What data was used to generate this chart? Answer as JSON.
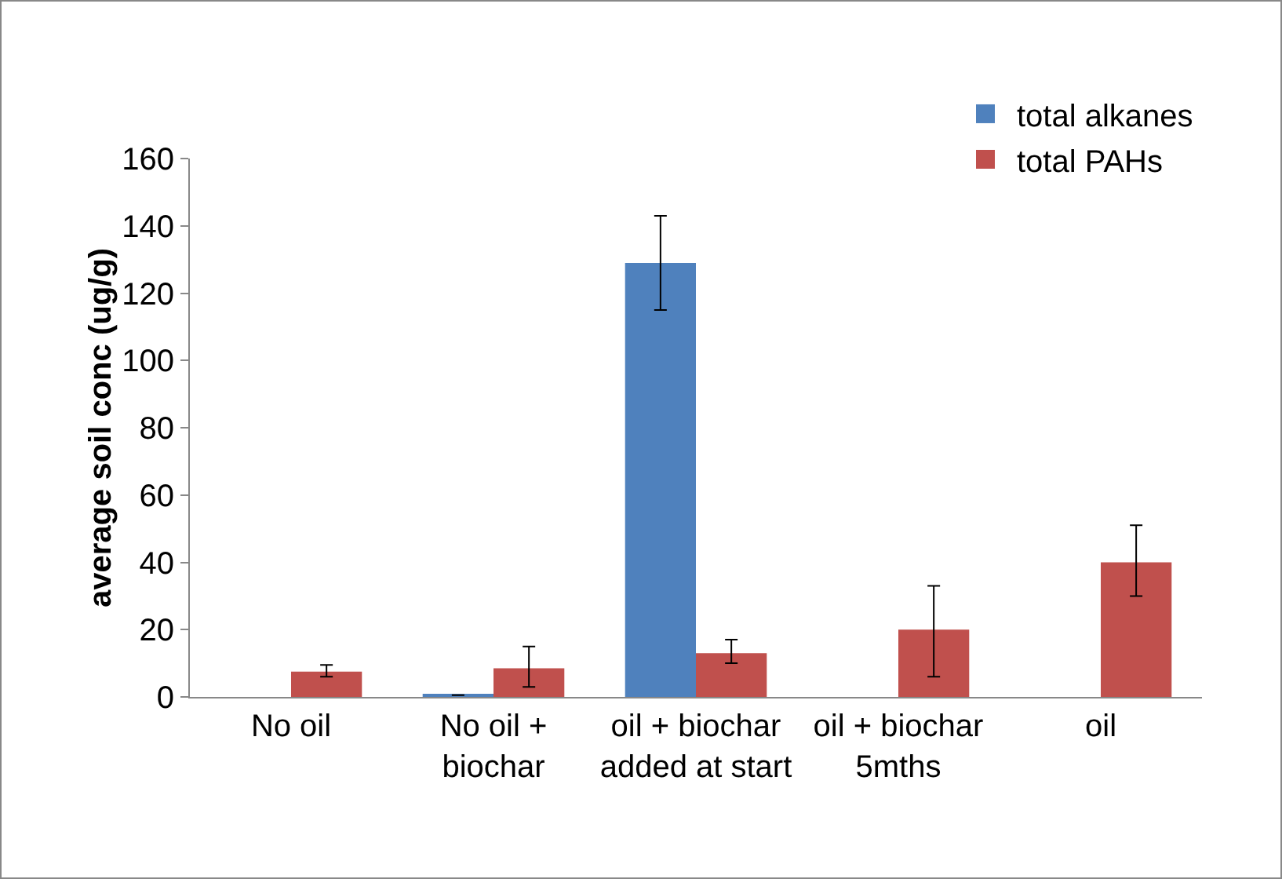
{
  "chart_data": {
    "type": "bar",
    "ylabel": "average soil conc (ug/g)",
    "categories": [
      "No oil",
      "No oil + biochar",
      "oil + biochar added at start",
      "oil + biochar 5mths",
      "oil"
    ],
    "series": [
      {
        "name": "total alkanes",
        "color": "#4f81bd",
        "values": [
          null,
          0.5,
          129,
          null,
          null
        ],
        "errors": [
          null,
          null,
          [
            115,
            143
          ],
          null,
          null
        ]
      },
      {
        "name": "total PAHs",
        "color": "#c0504d",
        "values": [
          7.5,
          8.5,
          13,
          20,
          40
        ],
        "errors": [
          [
            6,
            9.5
          ],
          [
            3,
            15
          ],
          [
            10,
            17
          ],
          [
            6,
            33
          ],
          [
            30,
            51
          ]
        ]
      }
    ],
    "ylim": [
      0,
      160
    ],
    "yticks": [
      0,
      20,
      40,
      60,
      80,
      100,
      120,
      140,
      160
    ],
    "grid": false,
    "legend": "top right"
  }
}
